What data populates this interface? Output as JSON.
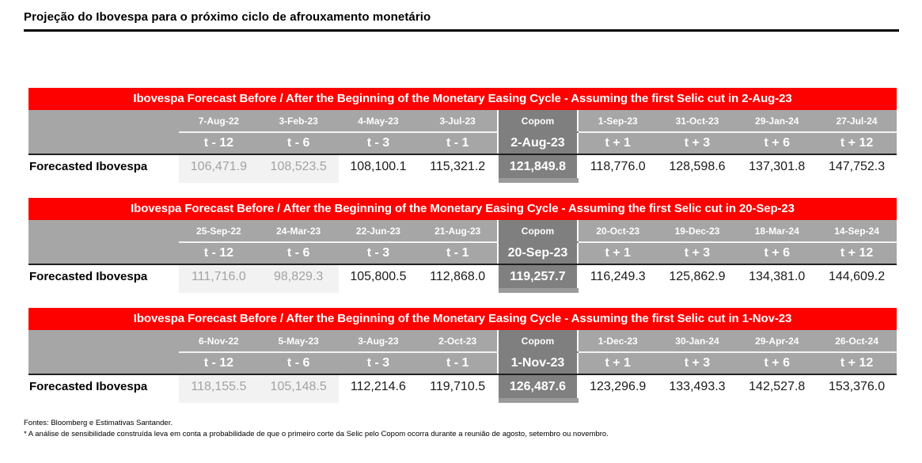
{
  "page": {
    "title": "Projeção do Ibovespa para o próximo ciclo de afrouxamento monetário"
  },
  "labels": {
    "row_label": "Forecasted Ibovespa",
    "copom_label": "Copom"
  },
  "colors": {
    "banner_red": "#fd0000",
    "header_gray": "#a6a6a6",
    "copom_gray": "#7f7f7f",
    "muted_cell_bg": "#f2f2f2",
    "muted_text": "#a3a3a3"
  },
  "tables": [
    {
      "banner": "Ibovespa Forecast Before / After the Beginning of the Monetary Easing Cycle - Assuming the first Selic cut in 2-Aug-23",
      "copom_date": "2-Aug-23",
      "columns": [
        {
          "date": "7-Aug-22",
          "offset": "t - 12",
          "value": "106,471.9",
          "style": "muted"
        },
        {
          "date": "3-Feb-23",
          "offset": "t - 6",
          "value": "108,523.5",
          "style": "muted"
        },
        {
          "date": "4-May-23",
          "offset": "t - 3",
          "value": "108,100.1",
          "style": "normal"
        },
        {
          "date": "3-Jul-23",
          "offset": "t - 1",
          "value": "115,321.2",
          "style": "normal"
        },
        {
          "date": "Copom",
          "offset": "2-Aug-23",
          "value": "121,849.8",
          "style": "copom"
        },
        {
          "date": "1-Sep-23",
          "offset": "t + 1",
          "value": "118,776.0",
          "style": "normal"
        },
        {
          "date": "31-Oct-23",
          "offset": "t + 3",
          "value": "128,598.6",
          "style": "normal"
        },
        {
          "date": "29-Jan-24",
          "offset": "t + 6",
          "value": "137,301.8",
          "style": "normal"
        },
        {
          "date": "27-Jul-24",
          "offset": "t + 12",
          "value": "147,752.3",
          "style": "normal"
        }
      ]
    },
    {
      "banner": "Ibovespa Forecast Before / After the Beginning of the Monetary Easing Cycle - Assuming the first Selic cut in 20-Sep-23",
      "copom_date": "20-Sep-23",
      "columns": [
        {
          "date": "25-Sep-22",
          "offset": "t - 12",
          "value": "111,716.0",
          "style": "muted"
        },
        {
          "date": "24-Mar-23",
          "offset": "t - 6",
          "value": "98,829.3",
          "style": "muted"
        },
        {
          "date": "22-Jun-23",
          "offset": "t - 3",
          "value": "105,800.5",
          "style": "normal"
        },
        {
          "date": "21-Aug-23",
          "offset": "t - 1",
          "value": "112,868.0",
          "style": "normal"
        },
        {
          "date": "Copom",
          "offset": "20-Sep-23",
          "value": "119,257.7",
          "style": "copom"
        },
        {
          "date": "20-Oct-23",
          "offset": "t + 1",
          "value": "116,249.3",
          "style": "normal"
        },
        {
          "date": "19-Dec-23",
          "offset": "t + 3",
          "value": "125,862.9",
          "style": "normal"
        },
        {
          "date": "18-Mar-24",
          "offset": "t + 6",
          "value": "134,381.0",
          "style": "normal"
        },
        {
          "date": "14-Sep-24",
          "offset": "t + 12",
          "value": "144,609.2",
          "style": "normal"
        }
      ]
    },
    {
      "banner": "Ibovespa Forecast Before / After the Beginning of the Monetary Easing Cycle - Assuming the first Selic cut in 1-Nov-23",
      "copom_date": "1-Nov-23",
      "columns": [
        {
          "date": "6-Nov-22",
          "offset": "t - 12",
          "value": "118,155.5",
          "style": "muted"
        },
        {
          "date": "5-May-23",
          "offset": "t - 6",
          "value": "105,148.5",
          "style": "muted"
        },
        {
          "date": "3-Aug-23",
          "offset": "t - 3",
          "value": "112,214.6",
          "style": "normal"
        },
        {
          "date": "2-Oct-23",
          "offset": "t - 1",
          "value": "119,710.5",
          "style": "normal"
        },
        {
          "date": "Copom",
          "offset": "1-Nov-23",
          "value": "126,487.6",
          "style": "copom"
        },
        {
          "date": "1-Dec-23",
          "offset": "t + 1",
          "value": "123,296.9",
          "style": "normal"
        },
        {
          "date": "30-Jan-24",
          "offset": "t + 3",
          "value": "133,493.3",
          "style": "normal"
        },
        {
          "date": "29-Apr-24",
          "offset": "t + 6",
          "value": "142,527.8",
          "style": "normal"
        },
        {
          "date": "26-Oct-24",
          "offset": "t + 12",
          "value": "153,376.0",
          "style": "normal"
        }
      ]
    }
  ],
  "footer": {
    "line1": "Fontes: Bloomberg e Estimativas Santander.",
    "line2": "* A análise de sensibilidade construída leva em conta a probabilidade de que o primeiro corte da Selic pelo Copom ocorra durante a reunião de agosto, setembro ou novembro."
  }
}
